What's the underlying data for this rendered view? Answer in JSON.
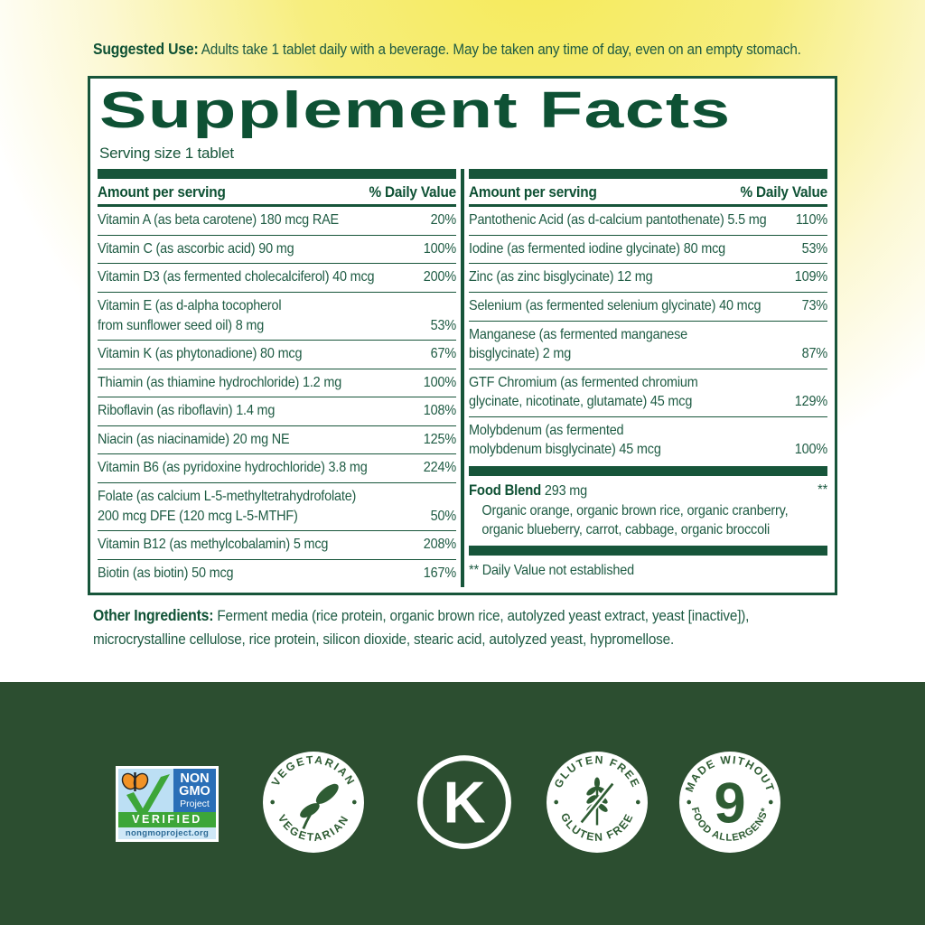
{
  "colors": {
    "label_green": "#17553a",
    "text_green": "#1e5b43",
    "strip_green": "#2c4e30",
    "badge_green": "#2e5c33",
    "nongmo_blue": "#2a6fb7",
    "nongmo_sky": "#bcdff4",
    "nongmo_green": "#3da639",
    "butterfly_orange": "#f19226",
    "background_yellow": "#f5ea57"
  },
  "suggested_use": {
    "label": "Suggested Use:",
    "text": " Adults take 1 tablet daily with a beverage. May be taken any time of day, even on an empty stomach."
  },
  "panel": {
    "title": "Supplement Facts",
    "serving_size": "Serving size 1 tablet",
    "columns": [
      {
        "header": {
          "amount": "Amount per serving",
          "dv": "% Daily Value"
        },
        "rows": [
          {
            "name": "Vitamin A (as beta carotene) 180 mcg RAE",
            "dv": "20%"
          },
          {
            "name": "Vitamin C (as ascorbic acid) 90 mg",
            "dv": "100%"
          },
          {
            "name": "Vitamin D3 (as fermented cholecalciferol) 40 mcg",
            "dv": "200%"
          },
          {
            "name": "Vitamin E (as d-alpha tocopherol\nfrom sunflower seed oil) 8 mg",
            "dv": "53%"
          },
          {
            "name": "Vitamin K (as phytonadione) 80 mcg",
            "dv": "67%"
          },
          {
            "name": "Thiamin (as thiamine hydrochloride) 1.2 mg",
            "dv": "100%"
          },
          {
            "name": "Riboflavin (as riboflavin) 1.4 mg",
            "dv": "108%"
          },
          {
            "name": "Niacin (as niacinamide) 20 mg NE",
            "dv": "125%"
          },
          {
            "name": "Vitamin B6 (as pyridoxine hydrochloride) 3.8 mg",
            "dv": "224%"
          },
          {
            "name": "Folate (as calcium L-5-methyltetrahydrofolate)\n200 mcg DFE (120 mcg L-5-MTHF)",
            "dv": "50%"
          },
          {
            "name": "Vitamin B12 (as methylcobalamin) 5 mcg",
            "dv": "208%"
          },
          {
            "name": "Biotin (as biotin) 50 mcg",
            "dv": "167%"
          }
        ]
      },
      {
        "header": {
          "amount": "Amount per serving",
          "dv": "% Daily Value"
        },
        "rows": [
          {
            "name": "Pantothenic Acid (as d-calcium pantothenate) 5.5 mg",
            "dv": "110%"
          },
          {
            "name": "Iodine (as fermented iodine glycinate) 80 mcg",
            "dv": "53%"
          },
          {
            "name": "Zinc (as zinc bisglycinate) 12 mg",
            "dv": "109%"
          },
          {
            "name": "Selenium (as fermented selenium glycinate) 40 mcg",
            "dv": "73%"
          },
          {
            "name": "Manganese (as fermented manganese\nbisglycinate) 2 mg",
            "dv": "87%"
          },
          {
            "name": "GTF Chromium (as fermented chromium\nglycinate, nicotinate, glutamate) 45 mcg",
            "dv": "129%"
          },
          {
            "name": "Molybdenum (as fermented\nmolybdenum bisglycinate) 45 mcg",
            "dv": "100%"
          }
        ]
      }
    ],
    "food_blend": {
      "name": "Food Blend",
      "amount": " 293 mg",
      "dv": "**",
      "description": "Organic orange, organic brown rice, organic cranberry,\norganic blueberry, carrot, cabbage, organic broccoli"
    },
    "footnote": "** Daily Value not established"
  },
  "other_ingredients": {
    "label": "Other Ingredients:",
    "text": " Ferment media (rice protein, organic brown rice, autolyzed yeast extract, yeast [inactive]), microcrystalline cellulose, rice protein, silicon dioxide, stearic acid, autolyzed yeast, hypromellose."
  },
  "badges": {
    "non_gmo": {
      "line1": "NON",
      "line2": "GMO",
      "line3": "Project",
      "verified": "VERIFIED",
      "url": "nongmoproject.org"
    },
    "vegetarian": {
      "top": "VEGETARIAN",
      "bottom": "VEGETARIAN"
    },
    "kosher": {
      "letter": "K"
    },
    "gluten_free": {
      "top": "GLUTEN FREE",
      "bottom": "GLUTEN FREE"
    },
    "allergens": {
      "top": "MADE WITHOUT",
      "number": "9",
      "bottom": "FOOD ALLERGENS*"
    }
  }
}
